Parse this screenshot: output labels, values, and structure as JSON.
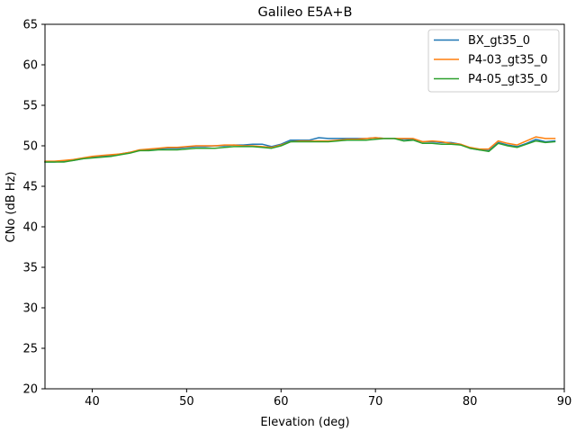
{
  "chart_data": {
    "type": "line",
    "title": "Galileo E5A+B",
    "xlabel": "Elevation (deg)",
    "ylabel": "CNo (dB Hz)",
    "xlim": [
      35,
      90
    ],
    "ylim": [
      20,
      65
    ],
    "xticks": [
      40,
      50,
      60,
      70,
      80,
      90
    ],
    "yticks": [
      20,
      25,
      30,
      35,
      40,
      45,
      50,
      55,
      60,
      65
    ],
    "grid": false,
    "legend_position": "top-right",
    "series": [
      {
        "name": "BX_gt35_0",
        "color": "#1f77b4",
        "x": [
          35,
          36,
          37,
          38,
          39,
          40,
          41,
          42,
          43,
          44,
          45,
          46,
          47,
          48,
          49,
          50,
          51,
          52,
          53,
          54,
          55,
          56,
          57,
          58,
          59,
          60,
          61,
          62,
          63,
          64,
          65,
          66,
          67,
          68,
          69,
          70,
          71,
          72,
          73,
          74,
          75,
          76,
          77,
          78,
          79,
          80,
          81,
          82,
          83,
          84,
          85,
          86,
          87,
          88,
          89
        ],
        "y": [
          48.0,
          48.0,
          48.1,
          48.2,
          48.4,
          48.6,
          48.7,
          48.8,
          49.0,
          49.2,
          49.4,
          49.5,
          49.6,
          49.7,
          49.7,
          49.8,
          49.9,
          49.9,
          50.0,
          50.0,
          50.1,
          50.1,
          50.2,
          50.2,
          49.9,
          50.2,
          50.7,
          50.7,
          50.7,
          51.0,
          50.9,
          50.9,
          50.9,
          50.9,
          50.9,
          51.0,
          50.9,
          50.9,
          50.8,
          50.8,
          50.5,
          50.5,
          50.4,
          50.4,
          50.2,
          49.7,
          49.5,
          49.4,
          50.4,
          50.1,
          49.9,
          50.3,
          50.8,
          50.5,
          50.6
        ]
      },
      {
        "name": "P4-03_gt35_0",
        "color": "#ff7f0e",
        "x": [
          35,
          36,
          37,
          38,
          39,
          40,
          41,
          42,
          43,
          44,
          45,
          46,
          47,
          48,
          49,
          50,
          51,
          52,
          53,
          54,
          55,
          56,
          57,
          58,
          59,
          60,
          61,
          62,
          63,
          64,
          65,
          66,
          67,
          68,
          69,
          70,
          71,
          72,
          73,
          74,
          75,
          76,
          77,
          78,
          79,
          80,
          81,
          82,
          83,
          84,
          85,
          86,
          87,
          88,
          89
        ],
        "y": [
          48.1,
          48.1,
          48.2,
          48.3,
          48.5,
          48.7,
          48.8,
          48.9,
          49.0,
          49.2,
          49.5,
          49.6,
          49.7,
          49.8,
          49.8,
          49.9,
          50.0,
          50.0,
          50.0,
          50.1,
          50.1,
          50.0,
          50.0,
          49.9,
          49.8,
          50.1,
          50.5,
          50.6,
          50.6,
          50.6,
          50.6,
          50.7,
          50.8,
          50.8,
          50.9,
          51.0,
          50.9,
          50.9,
          50.9,
          50.9,
          50.5,
          50.6,
          50.5,
          50.3,
          50.2,
          49.8,
          49.6,
          49.6,
          50.6,
          50.3,
          50.1,
          50.6,
          51.1,
          50.9,
          50.9
        ]
      },
      {
        "name": "P4-05_gt35_0",
        "color": "#2ca02c",
        "x": [
          35,
          36,
          37,
          38,
          39,
          40,
          41,
          42,
          43,
          44,
          45,
          46,
          47,
          48,
          49,
          50,
          51,
          52,
          53,
          54,
          55,
          56,
          57,
          58,
          59,
          60,
          61,
          62,
          63,
          64,
          65,
          66,
          67,
          68,
          69,
          70,
          71,
          72,
          73,
          74,
          75,
          76,
          77,
          78,
          79,
          80,
          81,
          82,
          83,
          84,
          85,
          86,
          87,
          88,
          89
        ],
        "y": [
          48.0,
          48.0,
          48.0,
          48.2,
          48.4,
          48.5,
          48.6,
          48.7,
          48.9,
          49.1,
          49.4,
          49.4,
          49.5,
          49.5,
          49.5,
          49.6,
          49.7,
          49.7,
          49.7,
          49.8,
          49.9,
          49.9,
          49.9,
          49.8,
          49.7,
          50.0,
          50.5,
          50.5,
          50.5,
          50.5,
          50.5,
          50.6,
          50.7,
          50.7,
          50.7,
          50.8,
          50.9,
          50.9,
          50.6,
          50.7,
          50.3,
          50.3,
          50.2,
          50.2,
          50.1,
          49.7,
          49.5,
          49.3,
          50.3,
          50.0,
          49.8,
          50.2,
          50.6,
          50.4,
          50.5
        ]
      }
    ]
  }
}
